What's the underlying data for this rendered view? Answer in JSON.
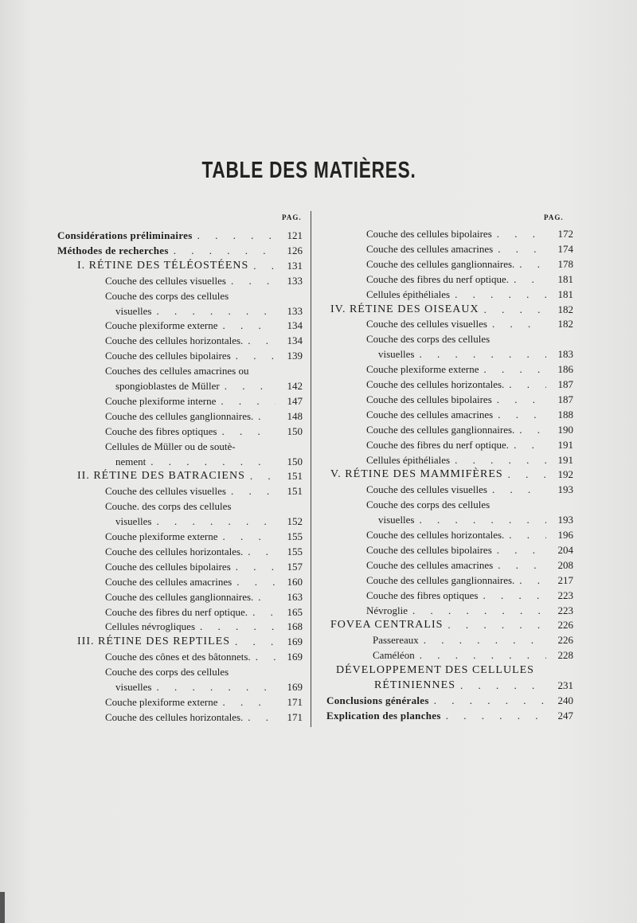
{
  "title": "TABLE DES MATIÈRES.",
  "pag_label": "PAG.",
  "left_column": [
    {
      "text": "Considérations préliminaires",
      "page": "121",
      "kind": "top"
    },
    {
      "text": "Méthodes de recherches",
      "page": "126",
      "kind": "top"
    },
    {
      "text": "I.  RÉTINE DES TÉLÉOSTÉENS",
      "page": "131",
      "kind": "section"
    },
    {
      "text": "Couche des cellules visuelles",
      "page": "133",
      "kind": "sub"
    },
    {
      "text": "Couche des corps des cellules",
      "page": "",
      "kind": "sub"
    },
    {
      "text": "visuelles",
      "page": "133",
      "kind": "cont"
    },
    {
      "text": "Couche plexiforme externe",
      "page": "134",
      "kind": "sub"
    },
    {
      "text": "Couche des cellules horizontales.",
      "page": "134",
      "kind": "sub"
    },
    {
      "text": "Couche des cellules bipolaires",
      "page": "139",
      "kind": "sub"
    },
    {
      "text": "Couches des cellules amacrines ou",
      "page": "",
      "kind": "sub"
    },
    {
      "text": "spongioblastes de Müller",
      "page": "142",
      "kind": "cont"
    },
    {
      "text": "Couche plexiforme interne",
      "page": "147",
      "kind": "sub"
    },
    {
      "text": "Couche des cellules ganglionnaires.",
      "page": "148",
      "kind": "sub"
    },
    {
      "text": "Couche des fibres optiques",
      "page": "150",
      "kind": "sub"
    },
    {
      "text": "Cellules de Müller ou de soutè-",
      "page": "",
      "kind": "sub"
    },
    {
      "text": "nement",
      "page": "150",
      "kind": "cont"
    },
    {
      "text": "II.  RÉTINE DES BATRACIENS",
      "page": "151",
      "kind": "section"
    },
    {
      "text": "Couche des cellules visuelles",
      "page": "151",
      "kind": "sub"
    },
    {
      "text": "Couche. des corps des cellules",
      "page": "",
      "kind": "sub"
    },
    {
      "text": "visuelles",
      "page": "152",
      "kind": "cont"
    },
    {
      "text": "Couche plexiforme externe",
      "page": "155",
      "kind": "sub"
    },
    {
      "text": "Couche des cellules horizontales.",
      "page": "155",
      "kind": "sub"
    },
    {
      "text": "Couche des cellules bipolaires",
      "page": "157",
      "kind": "sub"
    },
    {
      "text": "Couche des cellules amacrines",
      "page": "160",
      "kind": "sub"
    },
    {
      "text": "Couche des cellules ganglionnaires.",
      "page": "163",
      "kind": "sub"
    },
    {
      "text": "Couche des fibres du nerf optique.",
      "page": "165",
      "kind": "sub"
    },
    {
      "text": "Cellules névrogliques",
      "page": "168",
      "kind": "sub"
    },
    {
      "text": "III.  RÉTINE DES REPTILES",
      "page": "169",
      "kind": "section"
    },
    {
      "text": "Couche des cônes et des bâtonnets.",
      "page": "169",
      "kind": "sub"
    },
    {
      "text": "Couche des corps des cellules",
      "page": "",
      "kind": "sub"
    },
    {
      "text": "visuelles",
      "page": "169",
      "kind": "cont"
    },
    {
      "text": "Couche plexiforme externe",
      "page": "171",
      "kind": "sub"
    },
    {
      "text": "Couche des cellules horizontales.",
      "page": "171",
      "kind": "sub"
    }
  ],
  "right_column": [
    {
      "text": "Couche des cellules bipolaires",
      "page": "172",
      "kind": "sub"
    },
    {
      "text": "Couche des cellules amacrines",
      "page": "174",
      "kind": "sub"
    },
    {
      "text": "Couche des cellules ganglionnaires.",
      "page": "178",
      "kind": "sub"
    },
    {
      "text": "Couche des fibres du nerf optique.",
      "page": "181",
      "kind": "sub"
    },
    {
      "text": "Cellules épithéliales",
      "page": "181",
      "kind": "sub"
    },
    {
      "text": "IV.  RÉTINE DES OISEAUX",
      "page": "182",
      "kind": "section"
    },
    {
      "text": "Couche des cellules visuelles",
      "page": "182",
      "kind": "sub"
    },
    {
      "text": "Couche des corps des cellules",
      "page": "",
      "kind": "sub"
    },
    {
      "text": "visuelles",
      "page": "183",
      "kind": "cont"
    },
    {
      "text": "Couche plexiforme externe",
      "page": "186",
      "kind": "sub"
    },
    {
      "text": "Couche des cellules horizontales.",
      "page": "187",
      "kind": "sub"
    },
    {
      "text": "Couche des cellules bipolaires",
      "page": "187",
      "kind": "sub"
    },
    {
      "text": "Couche des cellules amacrines",
      "page": "188",
      "kind": "sub"
    },
    {
      "text": "Couche des cellules ganglionnaires.",
      "page": "190",
      "kind": "sub"
    },
    {
      "text": "Couche des fibres du nerf optique.",
      "page": "191",
      "kind": "sub"
    },
    {
      "text": "Cellules épithéliales",
      "page": "191",
      "kind": "sub"
    },
    {
      "text": "V.  RÉTINE DES MAMMIFÈRES",
      "page": "192",
      "kind": "section"
    },
    {
      "text": "Couche des cellules visuelles",
      "page": "193",
      "kind": "sub"
    },
    {
      "text": "Couche des corps des cellules",
      "page": "",
      "kind": "sub"
    },
    {
      "text": "visuelles",
      "page": "193",
      "kind": "cont"
    },
    {
      "text": "Couche des cellules horizontales.",
      "page": "196",
      "kind": "sub"
    },
    {
      "text": "Couche des cellules bipolaires",
      "page": "204",
      "kind": "sub"
    },
    {
      "text": "Couche des cellules amacrines",
      "page": "208",
      "kind": "sub"
    },
    {
      "text": "Couche des cellules ganglionnaires.",
      "page": "217",
      "kind": "sub"
    },
    {
      "text": "Couche des fibres optiques",
      "page": "223",
      "kind": "sub"
    },
    {
      "text": "Névroglie",
      "page": "223",
      "kind": "sub"
    },
    {
      "text": "FOVEA  CENTRALIS",
      "page": "226",
      "kind": "section"
    },
    {
      "text": "Passereaux",
      "page": "226",
      "kind": "sub2"
    },
    {
      "text": "Caméléon",
      "page": "228",
      "kind": "sub2"
    },
    {
      "text": "DÉVELOPPEMENT DES CELLULES",
      "page": "",
      "kind": "section2"
    },
    {
      "text": "RÉTINIENNES",
      "page": "231",
      "kind": "sectioncont"
    },
    {
      "text": "Conclusions générales",
      "page": "240",
      "kind": "top"
    },
    {
      "text": "Explication des planches",
      "page": "247",
      "kind": "top"
    }
  ]
}
